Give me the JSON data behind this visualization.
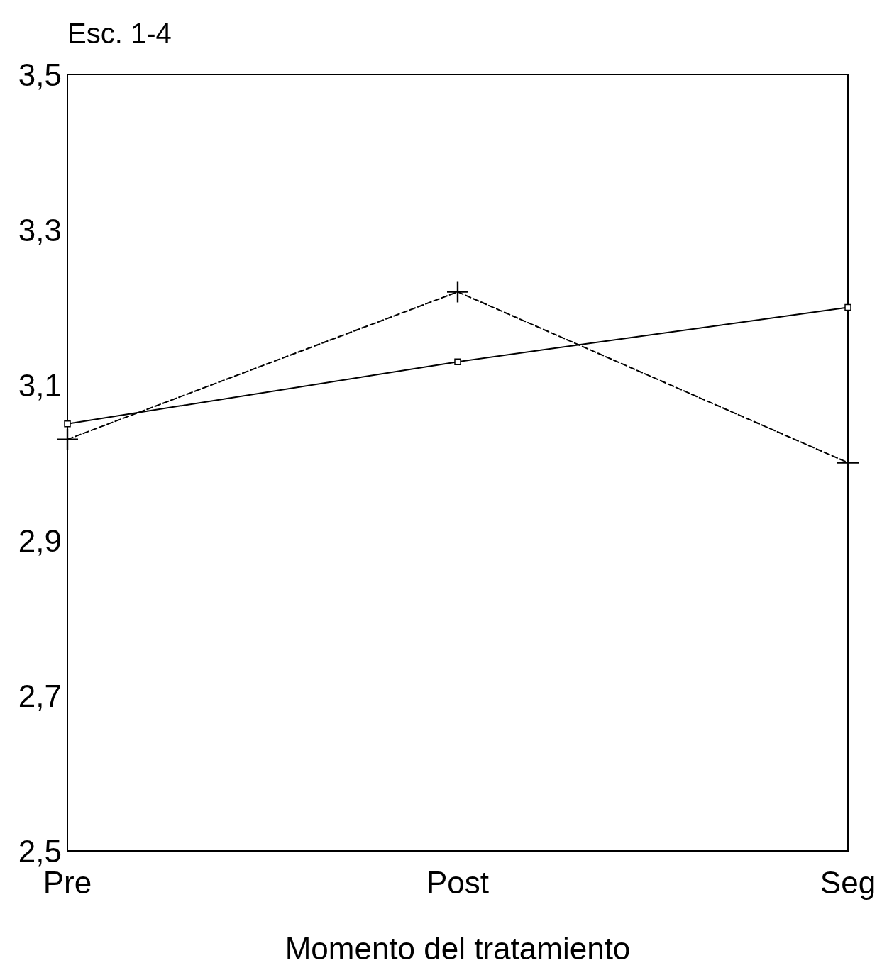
{
  "chart_data": {
    "type": "line",
    "ylabel": "Esc. 1-4",
    "xlabel": "Momento del tratamiento",
    "categories": [
      "Pre",
      "Post",
      "Seg"
    ],
    "series": [
      {
        "color": "#000000",
        "values": [
          3.05,
          3.13,
          3.2
        ],
        "line_style": "solid",
        "marker": "square"
      },
      {
        "color": "#000000",
        "values": [
          3.03,
          3.22,
          3.0
        ],
        "line_style": "dashed",
        "marker": "cross"
      }
    ],
    "ylim": [
      2.5,
      3.5
    ],
    "yticks": [
      {
        "value": 2.5,
        "label": "2,5"
      },
      {
        "value": 2.7,
        "label": "2,7"
      },
      {
        "value": 2.9,
        "label": "2,9"
      },
      {
        "value": 3.1,
        "label": "3,1"
      },
      {
        "value": 3.3,
        "label": "3,3"
      },
      {
        "value": 3.5,
        "label": "3,5"
      }
    ],
    "grid": false
  }
}
